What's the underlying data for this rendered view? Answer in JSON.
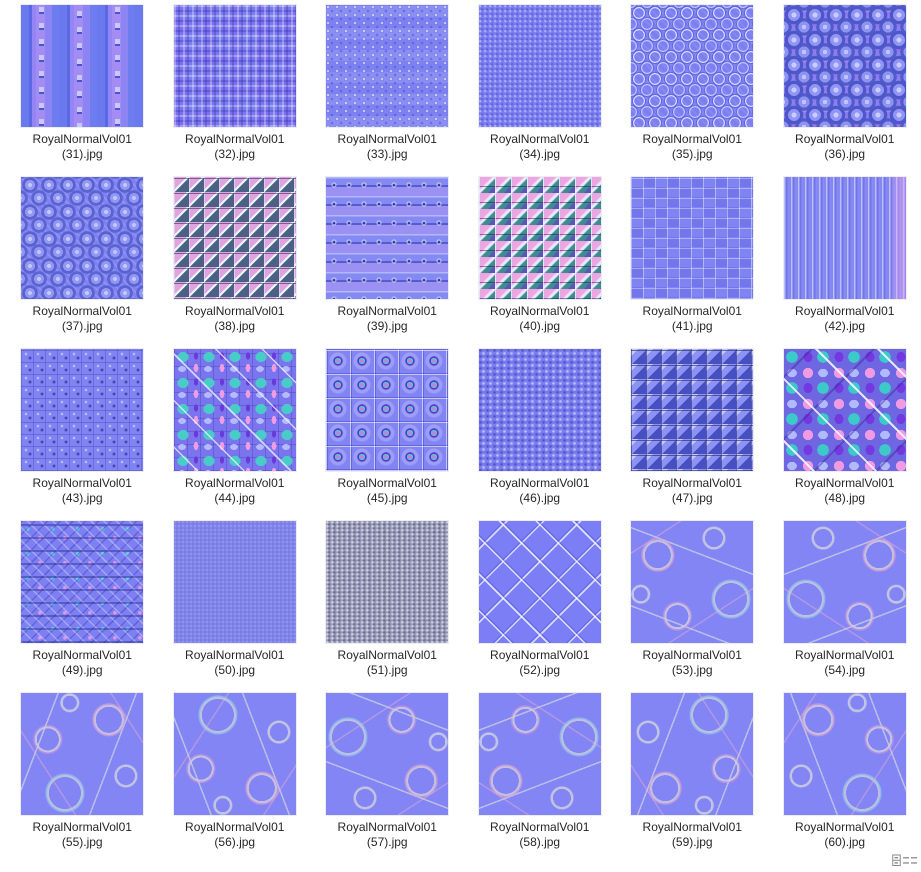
{
  "window": {
    "background": "#ffffff"
  },
  "palette": {
    "normal_map_base": "#7b7ef0",
    "normal_map_smooth": "#8184ea",
    "normal_map_gray": "#9c9eba",
    "accent_pink": "#ef9ce2",
    "accent_teal": "#3fd0cb",
    "accent_purple": "#6c38dc",
    "label_color": "#262626",
    "status_icon_color": "#8a8a8a"
  },
  "grid": {
    "columns": 6,
    "rows": 5,
    "items": [
      {
        "file": "RoyalNormalVol01 (31).jpg",
        "line1": "RoyalNormalVol01",
        "line2": "(31).jpg",
        "pattern": "studded-columns"
      },
      {
        "file": "RoyalNormalVol01 (32).jpg",
        "line1": "RoyalNormalVol01",
        "line2": "(32).jpg",
        "pattern": "maze-noise"
      },
      {
        "file": "RoyalNormalVol01 (33).jpg",
        "line1": "RoyalNormalVol01",
        "line2": "(33).jpg",
        "pattern": "dot-clusters"
      },
      {
        "file": "RoyalNormalVol01 (34).jpg",
        "line1": "RoyalNormalVol01",
        "line2": "(34).jpg",
        "pattern": "fine-noise"
      },
      {
        "file": "RoyalNormalVol01 (35).jpg",
        "line1": "RoyalNormalVol01",
        "line2": "(35).jpg",
        "pattern": "circle-rows"
      },
      {
        "file": "RoyalNormalVol01 (36).jpg",
        "line1": "RoyalNormalVol01",
        "line2": "(36).jpg",
        "pattern": "bump-rows-large"
      },
      {
        "file": "RoyalNormalVol01 (37).jpg",
        "line1": "RoyalNormalVol01",
        "line2": "(37).jpg",
        "pattern": "bump-rows"
      },
      {
        "file": "RoyalNormalVol01 (38).jpg",
        "line1": "RoyalNormalVol01",
        "line2": "(38).jpg",
        "pattern": "pyramid-grid"
      },
      {
        "file": "RoyalNormalVol01 (39).jpg",
        "line1": "RoyalNormalVol01",
        "line2": "(39).jpg",
        "pattern": "ribbed-rows"
      },
      {
        "file": "RoyalNormalVol01 (40).jpg",
        "line1": "RoyalNormalVol01",
        "line2": "(40).jpg",
        "pattern": "pyramid-grid-2"
      },
      {
        "file": "RoyalNormalVol01 (41).jpg",
        "line1": "RoyalNormalVol01",
        "line2": "(41).jpg",
        "pattern": "weave"
      },
      {
        "file": "RoyalNormalVol01 (42).jpg",
        "line1": "RoyalNormalVol01",
        "line2": "(42).jpg",
        "pattern": "vertical-ribs"
      },
      {
        "file": "RoyalNormalVol01 (43).jpg",
        "line1": "RoyalNormalVol01",
        "line2": "(43).jpg",
        "pattern": "curl-tiles"
      },
      {
        "file": "RoyalNormalVol01 (44).jpg",
        "line1": "RoyalNormalVol01",
        "line2": "(44).jpg",
        "pattern": "mosaic"
      },
      {
        "file": "RoyalNormalVol01 (45).jpg",
        "line1": "RoyalNormalVol01",
        "line2": "(45).jpg",
        "pattern": "button-tiles"
      },
      {
        "file": "RoyalNormalVol01 (46).jpg",
        "line1": "RoyalNormalVol01",
        "line2": "(46).jpg",
        "pattern": "speckle-grid"
      },
      {
        "file": "RoyalNormalVol01 (47).jpg",
        "line1": "RoyalNormalVol01",
        "line2": "(47).jpg",
        "pattern": "bevel-grid"
      },
      {
        "file": "RoyalNormalVol01 (48).jpg",
        "line1": "RoyalNormalVol01",
        "line2": "(48).jpg",
        "pattern": "mosaic-large"
      },
      {
        "file": "RoyalNormalVol01 (49).jpg",
        "line1": "RoyalNormalVol01",
        "line2": "(49).jpg",
        "pattern": "ornate"
      },
      {
        "file": "RoyalNormalVol01 (50).jpg",
        "line1": "RoyalNormalVol01",
        "line2": "(50).jpg",
        "pattern": "smooth"
      },
      {
        "file": "RoyalNormalVol01 (51).jpg",
        "line1": "RoyalNormalVol01",
        "line2": "(51).jpg",
        "pattern": "rough-gray"
      },
      {
        "file": "RoyalNormalVol01 (52).jpg",
        "line1": "RoyalNormalVol01",
        "line2": "(52).jpg",
        "pattern": "chain-link"
      },
      {
        "file": "RoyalNormalVol01 (53).jpg",
        "line1": "RoyalNormalVol01",
        "line2": "(53).jpg",
        "pattern": "cracked-1"
      },
      {
        "file": "RoyalNormalVol01 (54).jpg",
        "line1": "RoyalNormalVol01",
        "line2": "(54).jpg",
        "pattern": "cracked-2"
      },
      {
        "file": "RoyalNormalVol01 (55).jpg",
        "line1": "RoyalNormalVol01",
        "line2": "(55).jpg",
        "pattern": "cracked-3"
      },
      {
        "file": "RoyalNormalVol01 (56).jpg",
        "line1": "RoyalNormalVol01",
        "line2": "(56).jpg",
        "pattern": "cracked-4"
      },
      {
        "file": "RoyalNormalVol01 (57).jpg",
        "line1": "RoyalNormalVol01",
        "line2": "(57).jpg",
        "pattern": "cracked-5"
      },
      {
        "file": "RoyalNormalVol01 (58).jpg",
        "line1": "RoyalNormalVol01",
        "line2": "(58).jpg",
        "pattern": "cracked-6"
      },
      {
        "file": "RoyalNormalVol01 (59).jpg",
        "line1": "RoyalNormalVol01",
        "line2": "(59).jpg",
        "pattern": "cracked-7"
      },
      {
        "file": "RoyalNormalVol01 (60).jpg",
        "line1": "RoyalNormalVol01",
        "line2": "(60).jpg",
        "pattern": "cracked-8"
      }
    ]
  },
  "status_bar": {
    "view_toggle_icon": "details-view-toggle"
  }
}
